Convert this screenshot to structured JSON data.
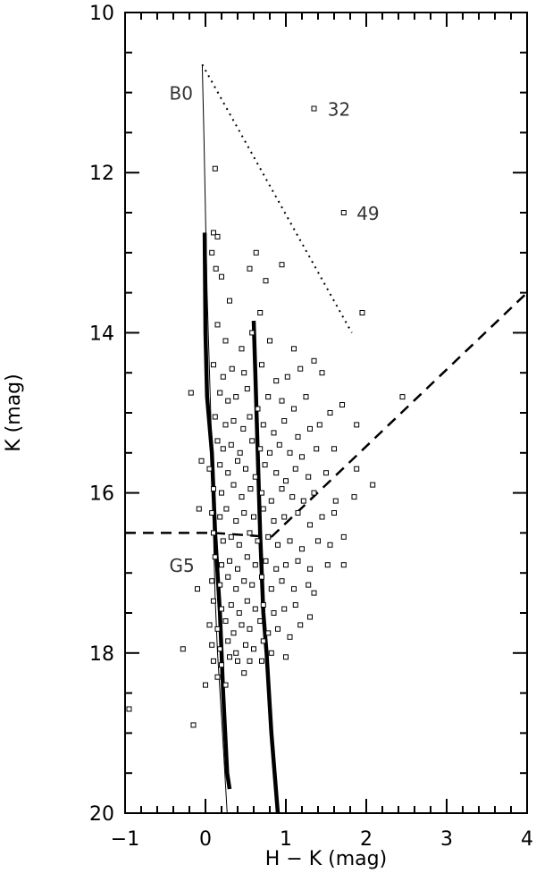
{
  "chart_data": {
    "type": "scatter",
    "xlabel": "H − K (mag)",
    "ylabel": "K (mag)",
    "xlim": [
      -1,
      4
    ],
    "ylim": [
      20,
      10
    ],
    "y_inverted": true,
    "grid": false,
    "x_ticks": [
      {
        "value": -1,
        "label": "−1"
      },
      {
        "value": 0,
        "label": "0"
      },
      {
        "value": 1,
        "label": "1"
      },
      {
        "value": 2,
        "label": "2"
      },
      {
        "value": 3,
        "label": "3"
      },
      {
        "value": 4,
        "label": "4"
      }
    ],
    "y_ticks": [
      {
        "value": 10,
        "label": "10"
      },
      {
        "value": 12,
        "label": "12"
      },
      {
        "value": 14,
        "label": "14"
      },
      {
        "value": 16,
        "label": "16"
      },
      {
        "value": 18,
        "label": "18"
      },
      {
        "value": 20,
        "label": "20"
      }
    ],
    "annotations": [
      {
        "text": "B0",
        "x": -0.45,
        "y": 11.0
      },
      {
        "text": "32",
        "x": 1.52,
        "y": 11.2
      },
      {
        "text": "49",
        "x": 1.88,
        "y": 12.5
      },
      {
        "text": "G5",
        "x": -0.45,
        "y": 16.9
      }
    ],
    "lines": [
      {
        "style": "thin",
        "points": [
          [
            -0.04,
            10.65
          ],
          [
            -0.02,
            11.5
          ],
          [
            0.0,
            12.5
          ],
          [
            0.02,
            13.5
          ],
          [
            0.05,
            14.5
          ],
          [
            0.08,
            15.5
          ],
          [
            0.1,
            16.5
          ],
          [
            0.12,
            17.3
          ],
          [
            0.15,
            18.0
          ],
          [
            0.2,
            18.8
          ],
          [
            0.27,
            20.0
          ]
        ]
      },
      {
        "style": "thick",
        "points": [
          [
            -0.01,
            12.75
          ],
          [
            0.0,
            14.0
          ],
          [
            0.02,
            14.8
          ],
          [
            0.08,
            15.5
          ],
          [
            0.12,
            16.5
          ],
          [
            0.18,
            17.5
          ],
          [
            0.22,
            18.5
          ],
          [
            0.27,
            19.5
          ],
          [
            0.3,
            19.7
          ]
        ]
      },
      {
        "style": "thick",
        "points": [
          [
            0.6,
            13.85
          ],
          [
            0.62,
            14.5
          ],
          [
            0.65,
            15.5
          ],
          [
            0.68,
            16.5
          ],
          [
            0.72,
            17.5
          ],
          [
            0.76,
            18.0
          ],
          [
            0.82,
            19.0
          ],
          [
            0.9,
            20.0
          ]
        ]
      },
      {
        "style": "dotted",
        "points": [
          [
            -0.04,
            10.65
          ],
          [
            1.82,
            14.0
          ]
        ]
      },
      {
        "style": "dashed",
        "points": [
          [
            -1.0,
            16.5
          ],
          [
            0.1,
            16.5
          ],
          [
            0.82,
            16.55
          ]
        ]
      },
      {
        "style": "dashed",
        "points": [
          [
            0.82,
            16.55
          ],
          [
            4.0,
            13.5
          ]
        ]
      }
    ],
    "series": [
      {
        "values": [
          [
            1.35,
            11.2
          ],
          [
            1.72,
            12.5
          ],
          [
            -0.18,
            14.75
          ],
          [
            -0.1,
            17.2
          ],
          [
            -0.28,
            17.95
          ],
          [
            -0.15,
            18.9
          ],
          [
            -0.95,
            18.7
          ],
          [
            2.45,
            14.8
          ],
          [
            2.08,
            15.9
          ],
          [
            1.95,
            13.75
          ],
          [
            1.85,
            16.05
          ],
          [
            -0.05,
            15.6
          ],
          [
            -0.08,
            16.2
          ],
          [
            0.12,
            11.95
          ],
          [
            0.1,
            12.75
          ],
          [
            0.15,
            12.8
          ],
          [
            0.08,
            13.0
          ],
          [
            0.13,
            13.2
          ],
          [
            0.2,
            13.3
          ],
          [
            0.55,
            13.2
          ],
          [
            0.63,
            13.0
          ],
          [
            0.75,
            13.35
          ],
          [
            0.95,
            13.15
          ],
          [
            0.3,
            13.6
          ],
          [
            0.68,
            13.75
          ],
          [
            0.15,
            13.9
          ],
          [
            0.25,
            14.1
          ],
          [
            0.45,
            14.2
          ],
          [
            0.58,
            14.0
          ],
          [
            0.8,
            14.1
          ],
          [
            1.1,
            14.2
          ],
          [
            1.35,
            14.35
          ],
          [
            0.1,
            14.4
          ],
          [
            0.22,
            14.55
          ],
          [
            0.33,
            14.45
          ],
          [
            0.48,
            14.5
          ],
          [
            0.7,
            14.4
          ],
          [
            0.88,
            14.6
          ],
          [
            1.02,
            14.55
          ],
          [
            1.18,
            14.45
          ],
          [
            1.45,
            14.5
          ],
          [
            0.18,
            14.75
          ],
          [
            0.28,
            14.85
          ],
          [
            0.38,
            14.8
          ],
          [
            0.52,
            14.7
          ],
          [
            0.65,
            14.95
          ],
          [
            0.78,
            14.8
          ],
          [
            0.95,
            14.85
          ],
          [
            1.1,
            14.95
          ],
          [
            1.25,
            14.8
          ],
          [
            1.55,
            15.0
          ],
          [
            1.7,
            14.9
          ],
          [
            0.12,
            15.05
          ],
          [
            0.25,
            15.15
          ],
          [
            0.35,
            15.1
          ],
          [
            0.47,
            15.2
          ],
          [
            0.55,
            15.05
          ],
          [
            0.72,
            15.15
          ],
          [
            0.85,
            15.25
          ],
          [
            0.98,
            15.1
          ],
          [
            1.15,
            15.3
          ],
          [
            1.3,
            15.2
          ],
          [
            1.42,
            15.15
          ],
          [
            1.88,
            15.15
          ],
          [
            0.15,
            15.35
          ],
          [
            0.22,
            15.45
          ],
          [
            0.32,
            15.4
          ],
          [
            0.43,
            15.5
          ],
          [
            0.58,
            15.35
          ],
          [
            0.68,
            15.45
          ],
          [
            0.8,
            15.5
          ],
          [
            0.92,
            15.4
          ],
          [
            1.05,
            15.5
          ],
          [
            1.2,
            15.55
          ],
          [
            1.38,
            15.45
          ],
          [
            1.6,
            15.45
          ],
          [
            0.05,
            15.7
          ],
          [
            0.18,
            15.65
          ],
          [
            0.28,
            15.75
          ],
          [
            0.4,
            15.6
          ],
          [
            0.5,
            15.7
          ],
          [
            0.62,
            15.8
          ],
          [
            0.74,
            15.65
          ],
          [
            0.88,
            15.75
          ],
          [
            1.0,
            15.85
          ],
          [
            1.12,
            15.7
          ],
          [
            1.28,
            15.8
          ],
          [
            1.5,
            15.75
          ],
          [
            1.88,
            15.7
          ],
          [
            0.1,
            15.95
          ],
          [
            0.2,
            16.0
          ],
          [
            0.35,
            15.9
          ],
          [
            0.45,
            16.05
          ],
          [
            0.56,
            15.95
          ],
          [
            0.7,
            16.0
          ],
          [
            0.82,
            16.1
          ],
          [
            0.95,
            15.95
          ],
          [
            1.08,
            16.05
          ],
          [
            1.22,
            16.1
          ],
          [
            1.35,
            16.0
          ],
          [
            1.62,
            16.1
          ],
          [
            0.08,
            16.25
          ],
          [
            0.18,
            16.3
          ],
          [
            0.26,
            16.2
          ],
          [
            0.38,
            16.35
          ],
          [
            0.48,
            16.25
          ],
          [
            0.6,
            16.3
          ],
          [
            0.72,
            16.2
          ],
          [
            0.85,
            16.35
          ],
          [
            0.98,
            16.3
          ],
          [
            1.15,
            16.25
          ],
          [
            1.3,
            16.4
          ],
          [
            1.45,
            16.3
          ],
          [
            1.6,
            16.25
          ],
          [
            0.1,
            16.5
          ],
          [
            0.22,
            16.6
          ],
          [
            0.32,
            16.55
          ],
          [
            0.42,
            16.65
          ],
          [
            0.55,
            16.5
          ],
          [
            0.65,
            16.6
          ],
          [
            0.78,
            16.55
          ],
          [
            0.9,
            16.65
          ],
          [
            1.05,
            16.6
          ],
          [
            1.2,
            16.7
          ],
          [
            1.4,
            16.6
          ],
          [
            1.55,
            16.65
          ],
          [
            1.72,
            16.55
          ],
          [
            0.12,
            16.8
          ],
          [
            0.2,
            16.9
          ],
          [
            0.3,
            16.85
          ],
          [
            0.4,
            16.95
          ],
          [
            0.52,
            16.8
          ],
          [
            0.62,
            16.9
          ],
          [
            0.75,
            16.85
          ],
          [
            0.88,
            16.95
          ],
          [
            1.0,
            16.9
          ],
          [
            1.15,
            16.85
          ],
          [
            1.3,
            16.95
          ],
          [
            1.52,
            16.9
          ],
          [
            1.72,
            16.9
          ],
          [
            0.08,
            17.1
          ],
          [
            0.18,
            17.15
          ],
          [
            0.28,
            17.05
          ],
          [
            0.38,
            17.2
          ],
          [
            0.48,
            17.1
          ],
          [
            0.58,
            17.15
          ],
          [
            0.7,
            17.05
          ],
          [
            0.82,
            17.2
          ],
          [
            0.95,
            17.1
          ],
          [
            1.1,
            17.2
          ],
          [
            1.28,
            17.15
          ],
          [
            1.35,
            17.25
          ],
          [
            0.1,
            17.35
          ],
          [
            0.2,
            17.45
          ],
          [
            0.32,
            17.4
          ],
          [
            0.42,
            17.5
          ],
          [
            0.52,
            17.35
          ],
          [
            0.62,
            17.45
          ],
          [
            0.72,
            17.4
          ],
          [
            0.85,
            17.5
          ],
          [
            0.98,
            17.45
          ],
          [
            1.12,
            17.4
          ],
          [
            1.3,
            17.55
          ],
          [
            0.05,
            17.65
          ],
          [
            0.15,
            17.7
          ],
          [
            0.25,
            17.6
          ],
          [
            0.35,
            17.75
          ],
          [
            0.45,
            17.65
          ],
          [
            0.55,
            17.7
          ],
          [
            0.68,
            17.6
          ],
          [
            0.78,
            17.75
          ],
          [
            0.9,
            17.7
          ],
          [
            1.05,
            17.8
          ],
          [
            1.18,
            17.65
          ],
          [
            0.08,
            17.9
          ],
          [
            0.18,
            17.95
          ],
          [
            0.28,
            17.85
          ],
          [
            0.38,
            18.0
          ],
          [
            0.5,
            17.9
          ],
          [
            0.6,
            17.95
          ],
          [
            0.72,
            17.85
          ],
          [
            0.82,
            18.0
          ],
          [
            0.1,
            18.1
          ],
          [
            0.2,
            18.15
          ],
          [
            0.3,
            18.05
          ],
          [
            0.4,
            18.1
          ],
          [
            0.55,
            18.1
          ],
          [
            0.7,
            18.1
          ],
          [
            1.0,
            18.05
          ],
          [
            0.15,
            18.3
          ],
          [
            0.25,
            18.4
          ],
          [
            0.0,
            18.4
          ],
          [
            0.48,
            18.25
          ]
        ]
      }
    ]
  }
}
